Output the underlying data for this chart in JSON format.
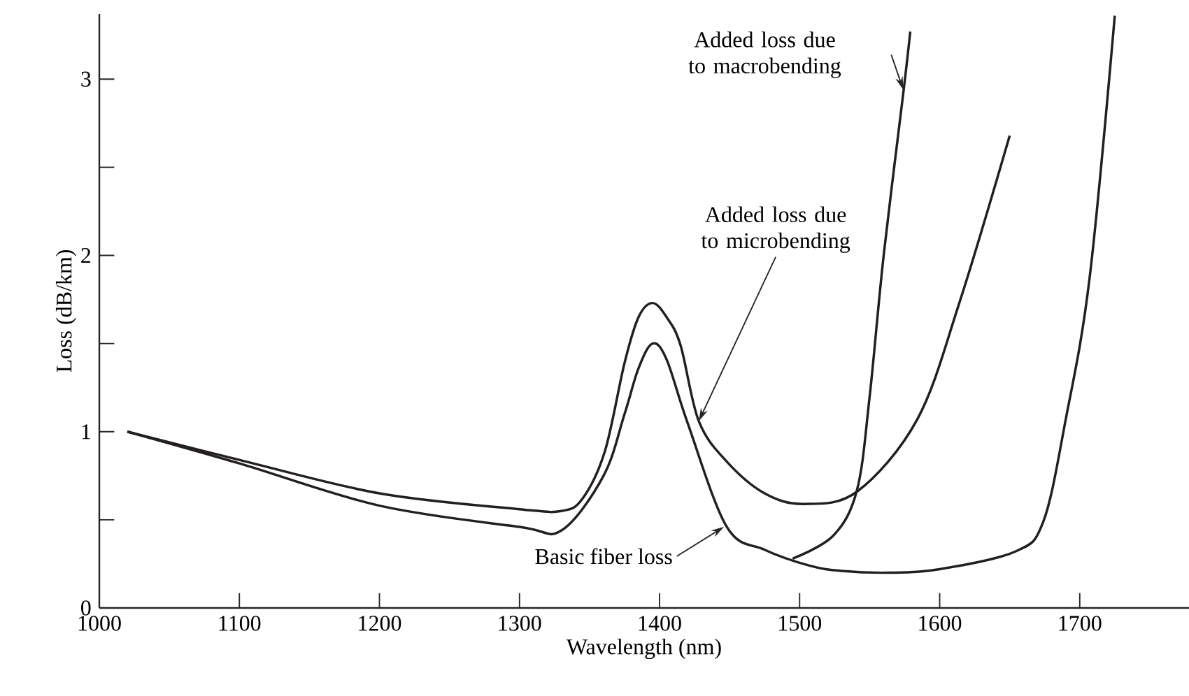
{
  "chart_data": {
    "type": "line",
    "xlabel": "Wavelength (nm)",
    "ylabel": "Loss (dB/km)",
    "xlim": [
      1000,
      1778
    ],
    "ylim": [
      0,
      3.37
    ],
    "xticks": [
      1000,
      1100,
      1200,
      1300,
      1400,
      1500,
      1600,
      1700
    ],
    "yticks": [
      0,
      {
        "value": 0.5,
        "label": null
      },
      1,
      {
        "value": 1.5,
        "label": null
      },
      2,
      {
        "value": 2.5,
        "label": null
      },
      3
    ],
    "grid": false,
    "marker": "none",
    "line_style": "solid",
    "series": [
      {
        "color": "#231f20",
        "x": [
          1020,
          1100,
          1200,
          1300,
          1330,
          1360,
          1375,
          1385,
          1395,
          1405,
          1420,
          1448,
          1475,
          1507,
          1530,
          1564,
          1600,
          1654,
          1674,
          1690,
          1707,
          1725
        ],
        "values": [
          1.0,
          0.82,
          0.58,
          0.46,
          0.44,
          0.75,
          1.1,
          1.36,
          1.5,
          1.41,
          1.05,
          0.46,
          0.33,
          0.24,
          0.21,
          0.2,
          0.22,
          0.32,
          0.49,
          1.07,
          1.87,
          3.36
        ]
      },
      {
        "color": "#231f20",
        "x": [
          1020,
          1100,
          1200,
          1300,
          1330,
          1345,
          1361,
          1375,
          1385,
          1395,
          1405,
          1415,
          1428,
          1448,
          1475,
          1503,
          1541,
          1584,
          1614,
          1650
        ],
        "values": [
          1.0,
          0.84,
          0.65,
          0.56,
          0.55,
          0.62,
          0.89,
          1.39,
          1.65,
          1.73,
          1.65,
          1.49,
          1.06,
          0.83,
          0.65,
          0.59,
          0.66,
          1.07,
          1.73,
          2.68
        ]
      },
      {
        "color": "#231f20",
        "x": [
          1495,
          1524,
          1541,
          1550,
          1560,
          1574,
          1579
        ],
        "values": [
          0.28,
          0.41,
          0.67,
          1.2,
          2.0,
          2.92,
          3.27
        ]
      }
    ],
    "annotations": [
      {
        "text": "Added loss due to macrobending",
        "x": 1574,
        "y": 2.94
      },
      {
        "text": "Added loss due to microbending",
        "x": 1428,
        "y": 1.06
      },
      {
        "text": "Basic fiber loss",
        "x": 1446,
        "y": 0.46
      }
    ]
  }
}
